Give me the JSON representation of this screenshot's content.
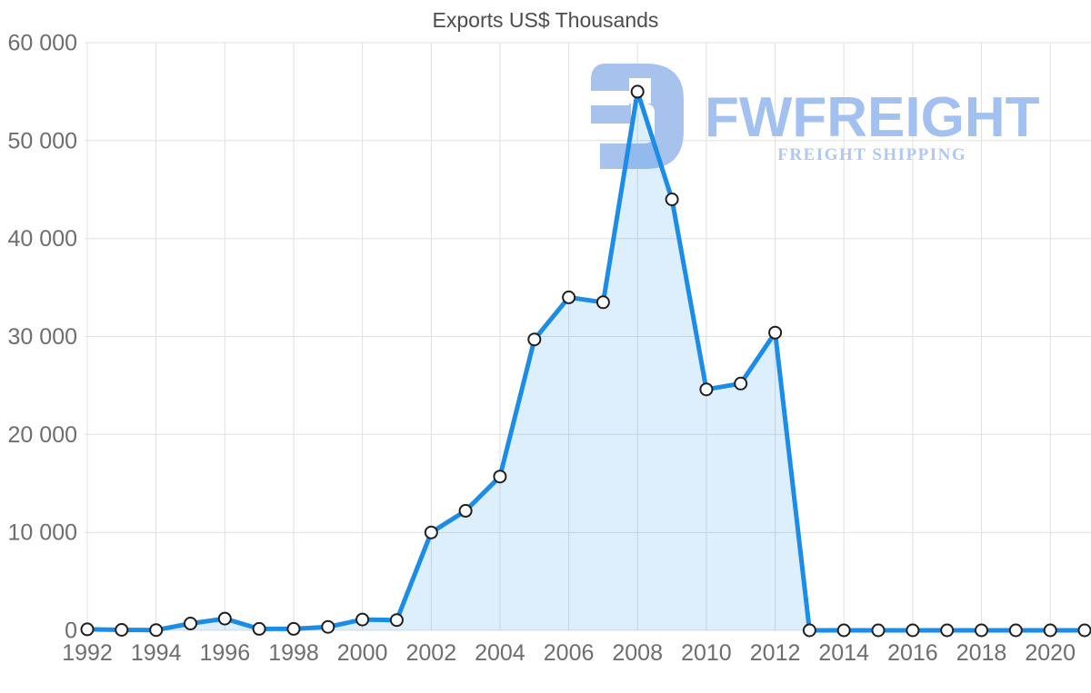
{
  "title": "Exports US$ Thousands",
  "logo": {
    "brand": "FWFREIGHT",
    "tagline": "FREIGHT SHIPPING"
  },
  "icons": {
    "logo": "fwfreight-monogram-icon"
  },
  "colors": {
    "line": "#1b8ce8",
    "area_fill": "rgba(27,140,232,0.15)",
    "marker_fill": "#ffffff",
    "marker_stroke": "#1f1f1f",
    "grid": "#e0e0e0",
    "axis_text": "#6e6e6e",
    "title_text": "#4c4c4c",
    "logo_icon": "#a8c2ee",
    "logo_text": "#a3c1f0",
    "logo_tagline": "#b0c7f2"
  },
  "chart_data": {
    "type": "area",
    "title": "Exports US$ Thousands",
    "xlabel": "",
    "ylabel": "",
    "legend": "none",
    "grid": true,
    "markers": true,
    "ylim": [
      0,
      60000
    ],
    "x": [
      1992,
      1993,
      1994,
      1995,
      1996,
      1997,
      1998,
      1999,
      2000,
      2001,
      2002,
      2003,
      2004,
      2005,
      2006,
      2007,
      2008,
      2009,
      2010,
      2011,
      2012,
      2013,
      2014,
      2015,
      2016,
      2017,
      2018,
      2019,
      2020,
      2021
    ],
    "series": [
      {
        "name": "Exports US$ Thousands",
        "values": [
          100,
          50,
          30,
          700,
          1200,
          150,
          150,
          350,
          1100,
          1050,
          10000,
          12200,
          15700,
          29700,
          34000,
          33500,
          55000,
          44000,
          24600,
          25200,
          30400,
          0,
          0,
          0,
          0,
          0,
          0,
          0,
          0,
          0
        ]
      }
    ],
    "ytick_values": [
      0,
      10000,
      20000,
      30000,
      40000,
      50000,
      60000
    ],
    "ytick_labels": [
      "0",
      "10 000",
      "20 000",
      "30 000",
      "40 000",
      "50 000",
      "60 000"
    ],
    "xtick_values": [
      1992,
      1994,
      1996,
      1998,
      2000,
      2002,
      2004,
      2006,
      2008,
      2010,
      2012,
      2014,
      2016,
      2018,
      2020
    ],
    "xtick_labels": [
      "1992",
      "1994",
      "1996",
      "1998",
      "2000",
      "2002",
      "2004",
      "2006",
      "2008",
      "2010",
      "2012",
      "2014",
      "2016",
      "2018",
      "2020"
    ]
  }
}
